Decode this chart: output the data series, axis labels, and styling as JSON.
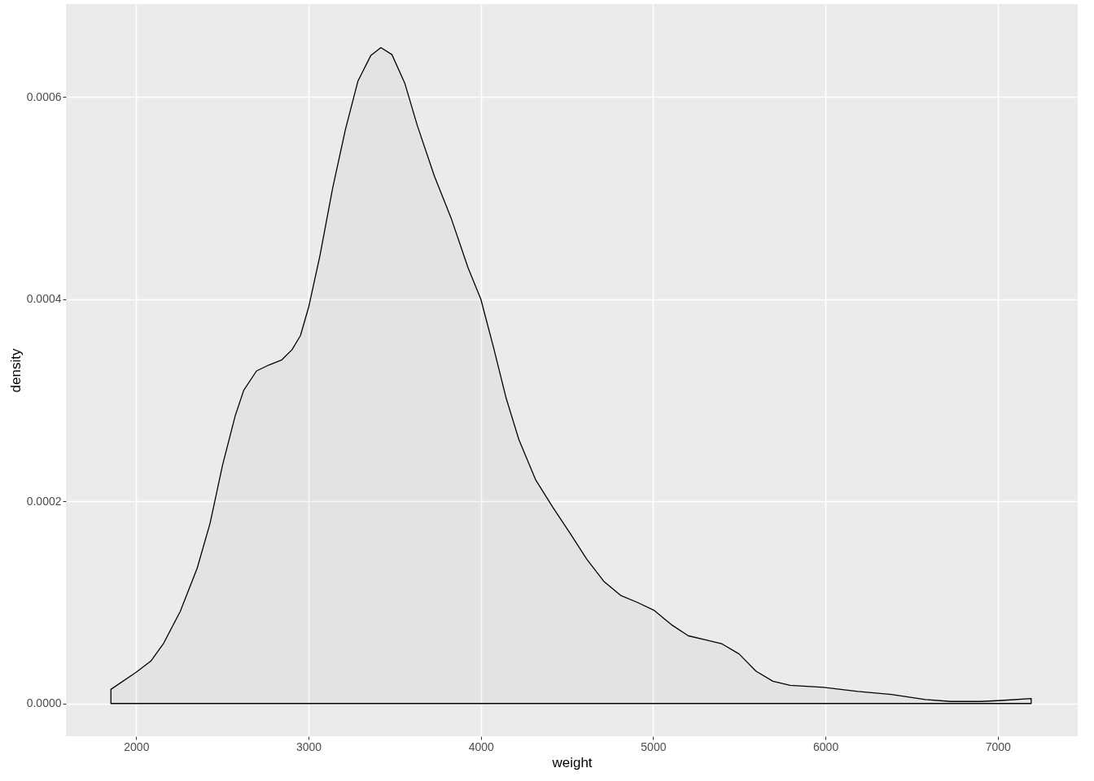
{
  "chart_data": {
    "type": "area",
    "xlabel": "weight",
    "ylabel": "density",
    "x": [
      1853,
      2000,
      2085,
      2157,
      2255,
      2354,
      2428,
      2501,
      2575,
      2624,
      2698,
      2771,
      2845,
      2904,
      2953,
      3002,
      3066,
      3140,
      3214,
      3287,
      3361,
      3420,
      3484,
      3558,
      3631,
      3730,
      3828,
      3926,
      4000,
      4074,
      4147,
      4221,
      4319,
      4418,
      4516,
      4614,
      4713,
      4811,
      4909,
      5007,
      5106,
      5204,
      5302,
      5400,
      5499,
      5597,
      5695,
      5794,
      5990,
      6187,
      6383,
      6580,
      6727,
      6899,
      7022,
      7194
    ],
    "series": [
      {
        "color": "#000000",
        "values": [
          1.4e-05,
          3.1e-05,
          4.2e-05,
          5.9e-05,
          9.1e-05,
          0.000134,
          0.000178,
          0.000236,
          0.000285,
          0.00031,
          0.000329,
          0.000335,
          0.00034,
          0.00035,
          0.000364,
          0.000393,
          0.000443,
          0.00051,
          0.000568,
          0.000616,
          0.000641,
          0.000649,
          0.000642,
          0.000614,
          0.000572,
          0.000522,
          0.00048,
          0.000431,
          0.0004,
          0.000352,
          0.000302,
          0.000261,
          0.000221,
          0.000194,
          0.000169,
          0.000143,
          0.000121,
          0.000107,
          0.0001,
          9.2e-05,
          7.8e-05,
          6.7e-05,
          6.3e-05,
          5.9e-05,
          4.9e-05,
          3.2e-05,
          2.2e-05,
          1.8e-05,
          1.6e-05,
          1.2e-05,
          9e-06,
          4e-06,
          2e-06,
          2e-06,
          3e-06,
          5e-06
        ]
      }
    ],
    "xlim": [
      1592,
      7464
    ],
    "xticks": [
      2000,
      3000,
      4000,
      5000,
      6000,
      7000
    ],
    "ylim": [
      -3.24e-05,
      0.000692
    ],
    "yticks": [
      {
        "value": 0,
        "label": "0.0000"
      },
      {
        "value": 0.0002,
        "label": "0.0002"
      },
      {
        "value": 0.0004,
        "label": "0.0004"
      },
      {
        "value": 0.0006,
        "label": "0.0006"
      }
    ],
    "grid": true
  }
}
